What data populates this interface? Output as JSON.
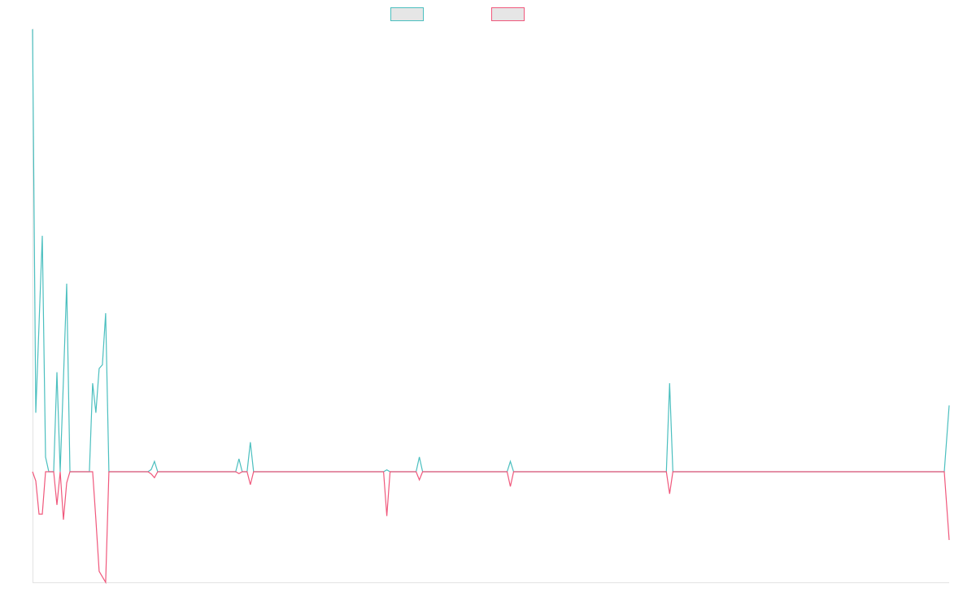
{
  "colors": {
    "series_a": "#4bbfbf",
    "series_b": "#f0587c",
    "axis": "#e3e3e3",
    "legend_fill": "#e6e6e6"
  },
  "chart_data": {
    "type": "line",
    "title": "",
    "xlabel": "",
    "ylabel": "",
    "legend": "top-center",
    "grid": false,
    "ylim": [
      -3.0,
      12.0
    ],
    "xlim": [
      0,
      1128
    ],
    "series": [
      {
        "points": [
          [
            0,
            12.0
          ],
          [
            4,
            1.6
          ],
          [
            8,
            4.0
          ],
          [
            12,
            6.4
          ],
          [
            16,
            0.4
          ],
          [
            20,
            0
          ],
          [
            26,
            0
          ],
          [
            30,
            2.7
          ],
          [
            34,
            0
          ],
          [
            38,
            2.5
          ],
          [
            42,
            5.1
          ],
          [
            46,
            0
          ],
          [
            70,
            0
          ],
          [
            74,
            2.4
          ],
          [
            78,
            1.6
          ],
          [
            82,
            2.8
          ],
          [
            86,
            2.9
          ],
          [
            90,
            4.3
          ],
          [
            94,
            0
          ],
          [
            104,
            0
          ],
          [
            108,
            0
          ],
          [
            142,
            0
          ],
          [
            146,
            0.06
          ],
          [
            150,
            0.28
          ],
          [
            154,
            0
          ],
          [
            250,
            0
          ],
          [
            254,
            0.35
          ],
          [
            258,
            0
          ],
          [
            264,
            0
          ],
          [
            268,
            0.8
          ],
          [
            272,
            0
          ],
          [
            432,
            0
          ],
          [
            436,
            0.05
          ],
          [
            440,
            0
          ],
          [
            472,
            0
          ],
          [
            476,
            0.4
          ],
          [
            480,
            0
          ],
          [
            584,
            0
          ],
          [
            588,
            0.28
          ],
          [
            592,
            0
          ],
          [
            780,
            0
          ],
          [
            784,
            2.4
          ],
          [
            788,
            0
          ],
          [
            1122,
            0
          ],
          [
            1128,
            1.8
          ]
        ]
      },
      {
        "points": [
          [
            0,
            0
          ],
          [
            4,
            -0.25
          ],
          [
            8,
            -1.15
          ],
          [
            12,
            -1.15
          ],
          [
            16,
            0
          ],
          [
            20,
            0
          ],
          [
            26,
            0
          ],
          [
            30,
            -0.9
          ],
          [
            34,
            0
          ],
          [
            38,
            -1.3
          ],
          [
            42,
            -0.3
          ],
          [
            46,
            0
          ],
          [
            70,
            0
          ],
          [
            74,
            0
          ],
          [
            78,
            -1.3
          ],
          [
            82,
            -2.7
          ],
          [
            86,
            -2.85
          ],
          [
            90,
            -3.0
          ],
          [
            94,
            0
          ],
          [
            104,
            0
          ],
          [
            108,
            0
          ],
          [
            142,
            0
          ],
          [
            146,
            -0.06
          ],
          [
            150,
            -0.16
          ],
          [
            154,
            0
          ],
          [
            250,
            0
          ],
          [
            254,
            -0.05
          ],
          [
            258,
            0
          ],
          [
            264,
            0
          ],
          [
            268,
            -0.35
          ],
          [
            272,
            0
          ],
          [
            432,
            0
          ],
          [
            436,
            -1.2
          ],
          [
            440,
            0
          ],
          [
            472,
            0
          ],
          [
            476,
            -0.22
          ],
          [
            480,
            0
          ],
          [
            584,
            0
          ],
          [
            588,
            -0.4
          ],
          [
            592,
            0
          ],
          [
            780,
            0
          ],
          [
            784,
            -0.6
          ],
          [
            788,
            0
          ],
          [
            1122,
            0
          ],
          [
            1128,
            -1.85
          ]
        ]
      }
    ]
  }
}
